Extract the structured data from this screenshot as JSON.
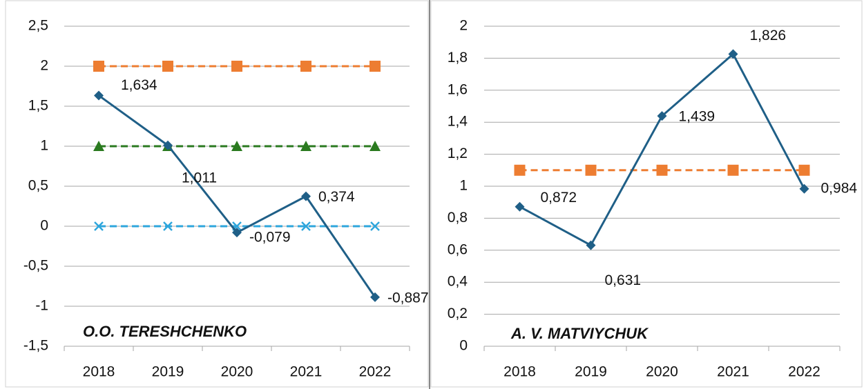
{
  "chart_data": [
    {
      "type": "line",
      "categories": [
        "2018",
        "2019",
        "2020",
        "2021",
        "2022"
      ],
      "ylim": [
        -1.5,
        2.5
      ],
      "yticks": [
        {
          "value": 2.5,
          "label": "2,5"
        },
        2,
        {
          "value": 1.5,
          "label": "1,5"
        },
        1,
        {
          "value": 0.5,
          "label": "0,5"
        },
        0,
        {
          "value": -0.5,
          "label": "-0,5"
        },
        -1,
        {
          "value": -1.5,
          "label": "-1,5"
        }
      ],
      "grid": true,
      "annotation": "O.O. TERESHCHENKO",
      "series": [
        {
          "color": "#ed7d31",
          "marker": "square",
          "dash": true,
          "values": [
            2,
            2,
            2,
            2,
            2
          ]
        },
        {
          "color": "#2a7a1f",
          "marker": "triangle",
          "dash": true,
          "values": [
            1,
            1,
            1,
            1,
            1
          ]
        },
        {
          "color": "#2ea6dc",
          "marker": "x",
          "dash": true,
          "values": [
            0,
            0,
            0,
            0,
            0
          ]
        },
        {
          "color": "#1f5f87",
          "marker": "diamond",
          "dash": false,
          "values": [
            1.634,
            1.011,
            -0.079,
            0.374,
            -0.887
          ],
          "value_labels": [
            "1,634",
            "1,011",
            "-0,079",
            "0,374",
            "-0,887"
          ]
        }
      ]
    },
    {
      "type": "line",
      "categories": [
        "2018",
        "2019",
        "2020",
        "2021",
        "2022"
      ],
      "ylim": [
        0,
        2
      ],
      "yticks": [
        2,
        {
          "value": 1.8,
          "label": "1,8"
        },
        {
          "value": 1.6,
          "label": "1,6"
        },
        {
          "value": 1.4,
          "label": "1,4"
        },
        {
          "value": 1.2,
          "label": "1,2"
        },
        1,
        {
          "value": 0.8,
          "label": "0,8"
        },
        {
          "value": 0.6,
          "label": "0,6"
        },
        {
          "value": 0.4,
          "label": "0,4"
        },
        {
          "value": 0.2,
          "label": "0,2"
        },
        0
      ],
      "grid": true,
      "annotation": "A. V. MATVIYCHUK",
      "series": [
        {
          "color": "#ed7d31",
          "marker": "square",
          "dash": true,
          "values": [
            1.1,
            1.1,
            1.1,
            1.1,
            1.1
          ]
        },
        {
          "color": "#1f5f87",
          "marker": "diamond",
          "dash": false,
          "values": [
            0.872,
            0.631,
            1.439,
            1.826,
            0.984
          ],
          "value_labels": [
            "0,872",
            "0,631",
            "1,439",
            "1,826",
            "0,984"
          ]
        }
      ]
    }
  ]
}
